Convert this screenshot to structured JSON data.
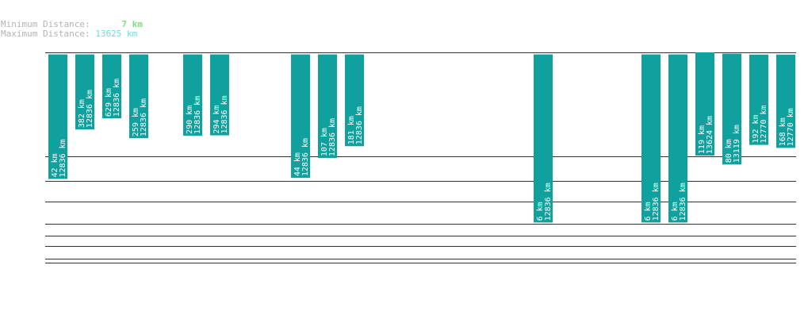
{
  "legend": {
    "min_label": "Minimum Distance:",
    "min_value": "7 km",
    "max_label": "Maximum Distance:",
    "max_value": "13625 km"
  },
  "colors": {
    "bar": "#10a19e",
    "gridline": "#333333",
    "min_value": "#7fe07f",
    "max_value": "#66e0e0"
  },
  "chart_data": {
    "type": "bar",
    "value_scale": "log",
    "grid": true,
    "series": [
      {
        "values": [
          {
            "slot": 0,
            "min_km": 42,
            "max_km": 12836
          },
          {
            "slot": 1,
            "min_km": 382,
            "max_km": 12836
          },
          {
            "slot": 2,
            "min_km": 629,
            "max_km": 12836
          },
          {
            "slot": 3,
            "min_km": 259,
            "max_km": 12836
          },
          {
            "slot": 5,
            "min_km": 290,
            "max_km": 12836
          },
          {
            "slot": 6,
            "min_km": 294,
            "max_km": 12836
          },
          {
            "slot": 9,
            "min_km": 44,
            "max_km": 12836
          },
          {
            "slot": 10,
            "min_km": 107,
            "max_km": 12836
          },
          {
            "slot": 11,
            "min_km": 181,
            "max_km": 12836
          },
          {
            "slot": 18,
            "min_km": 6,
            "max_km": 12836
          },
          {
            "slot": 22,
            "min_km": 6,
            "max_km": 12836
          },
          {
            "slot": 23,
            "min_km": 6,
            "max_km": 12836
          },
          {
            "slot": 24,
            "min_km": 119,
            "max_km": 13624
          },
          {
            "slot": 25,
            "min_km": 80,
            "max_km": 13119
          },
          {
            "slot": 26,
            "min_km": 192,
            "max_km": 12770
          },
          {
            "slot": 27,
            "min_km": 168,
            "max_km": 12770
          }
        ]
      }
    ]
  }
}
